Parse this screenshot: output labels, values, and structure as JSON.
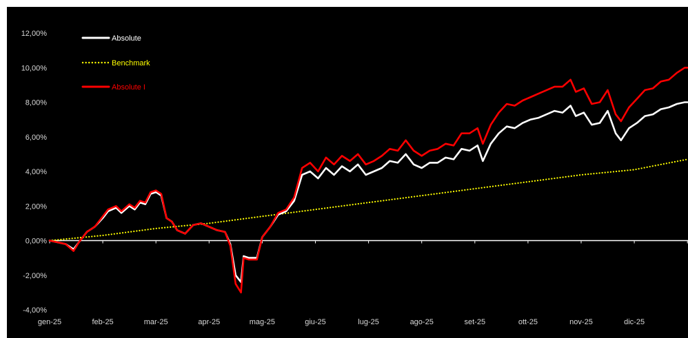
{
  "chart_data": {
    "type": "line",
    "y_ticks": [
      "12,00%",
      "10,00%",
      "8,00%",
      "6,00%",
      "4,00%",
      "2,00%",
      "0,00%",
      "-2,00%",
      "-4,00%"
    ],
    "x_ticks": [
      "gen-25",
      "feb-25",
      "mar-25",
      "apr-25",
      "mag-25",
      "giu-25",
      "lug-25",
      "ago-25",
      "set-25",
      "ott-25",
      "nov-25",
      "dic-25"
    ],
    "ylim": [
      -4,
      12
    ],
    "x_range_months": [
      0,
      12
    ],
    "grid": false,
    "legend_position": "top-left",
    "series": [
      {
        "name": "Absolute",
        "color": "#ffffff",
        "style": "solid",
        "points": [
          [
            0,
            0
          ],
          [
            0.15,
            -0.1
          ],
          [
            0.3,
            -0.2
          ],
          [
            0.45,
            -0.5
          ],
          [
            0.55,
            -0.1
          ],
          [
            0.7,
            0.5
          ],
          [
            0.85,
            0.8
          ],
          [
            1.0,
            1.3
          ],
          [
            1.1,
            1.7
          ],
          [
            1.25,
            1.9
          ],
          [
            1.35,
            1.6
          ],
          [
            1.5,
            2.0
          ],
          [
            1.6,
            1.8
          ],
          [
            1.7,
            2.2
          ],
          [
            1.8,
            2.1
          ],
          [
            1.9,
            2.7
          ],
          [
            2.0,
            2.8
          ],
          [
            2.1,
            2.6
          ],
          [
            2.2,
            1.3
          ],
          [
            2.3,
            1.1
          ],
          [
            2.4,
            0.6
          ],
          [
            2.55,
            0.4
          ],
          [
            2.7,
            0.9
          ],
          [
            2.85,
            1.0
          ],
          [
            3.0,
            0.8
          ],
          [
            3.15,
            0.6
          ],
          [
            3.3,
            0.5
          ],
          [
            3.4,
            -0.2
          ],
          [
            3.5,
            -2.0
          ],
          [
            3.6,
            -2.4
          ],
          [
            3.65,
            -0.9
          ],
          [
            3.75,
            -1.0
          ],
          [
            3.9,
            -1.0
          ],
          [
            4.0,
            0.2
          ],
          [
            4.15,
            0.8
          ],
          [
            4.3,
            1.5
          ],
          [
            4.45,
            1.7
          ],
          [
            4.6,
            2.3
          ],
          [
            4.75,
            3.8
          ],
          [
            4.9,
            4.0
          ],
          [
            5.05,
            3.6
          ],
          [
            5.2,
            4.2
          ],
          [
            5.35,
            3.8
          ],
          [
            5.5,
            4.3
          ],
          [
            5.65,
            4.0
          ],
          [
            5.8,
            4.4
          ],
          [
            5.95,
            3.8
          ],
          [
            6.1,
            4.0
          ],
          [
            6.25,
            4.2
          ],
          [
            6.4,
            4.6
          ],
          [
            6.55,
            4.5
          ],
          [
            6.7,
            5.0
          ],
          [
            6.85,
            4.4
          ],
          [
            7.0,
            4.2
          ],
          [
            7.15,
            4.5
          ],
          [
            7.3,
            4.5
          ],
          [
            7.45,
            4.8
          ],
          [
            7.6,
            4.7
          ],
          [
            7.75,
            5.3
          ],
          [
            7.9,
            5.2
          ],
          [
            8.05,
            5.5
          ],
          [
            8.15,
            4.6
          ],
          [
            8.3,
            5.6
          ],
          [
            8.45,
            6.2
          ],
          [
            8.6,
            6.6
          ],
          [
            8.75,
            6.5
          ],
          [
            8.9,
            6.8
          ],
          [
            9.05,
            7.0
          ],
          [
            9.2,
            7.1
          ],
          [
            9.35,
            7.3
          ],
          [
            9.5,
            7.5
          ],
          [
            9.65,
            7.4
          ],
          [
            9.8,
            7.8
          ],
          [
            9.9,
            7.2
          ],
          [
            10.05,
            7.4
          ],
          [
            10.2,
            6.7
          ],
          [
            10.35,
            6.8
          ],
          [
            10.5,
            7.5
          ],
          [
            10.65,
            6.2
          ],
          [
            10.75,
            5.8
          ],
          [
            10.9,
            6.5
          ],
          [
            11.05,
            6.8
          ],
          [
            11.2,
            7.2
          ],
          [
            11.35,
            7.3
          ],
          [
            11.5,
            7.6
          ],
          [
            11.65,
            7.7
          ],
          [
            11.8,
            7.9
          ],
          [
            11.95,
            8.0
          ],
          [
            12.0,
            8.0
          ]
        ]
      },
      {
        "name": "Benchmark",
        "color": "#ffff00",
        "style": "dotted",
        "points": [
          [
            0,
            0
          ],
          [
            1,
            0.3
          ],
          [
            2,
            0.7
          ],
          [
            3,
            1.0
          ],
          [
            4,
            1.4
          ],
          [
            5,
            1.8
          ],
          [
            6,
            2.2
          ],
          [
            7,
            2.6
          ],
          [
            8,
            3.0
          ],
          [
            9,
            3.4
          ],
          [
            10,
            3.8
          ],
          [
            11,
            4.1
          ],
          [
            12,
            4.7
          ]
        ]
      },
      {
        "name": "Absolute I",
        "color": "#ff0000",
        "style": "solid",
        "points": [
          [
            0,
            0
          ],
          [
            0.15,
            -0.1
          ],
          [
            0.3,
            -0.2
          ],
          [
            0.45,
            -0.6
          ],
          [
            0.55,
            -0.1
          ],
          [
            0.7,
            0.5
          ],
          [
            0.85,
            0.8
          ],
          [
            1.0,
            1.4
          ],
          [
            1.1,
            1.8
          ],
          [
            1.25,
            2.0
          ],
          [
            1.35,
            1.7
          ],
          [
            1.5,
            2.1
          ],
          [
            1.6,
            1.9
          ],
          [
            1.7,
            2.3
          ],
          [
            1.8,
            2.2
          ],
          [
            1.9,
            2.8
          ],
          [
            2.0,
            2.9
          ],
          [
            2.1,
            2.7
          ],
          [
            2.2,
            1.3
          ],
          [
            2.3,
            1.1
          ],
          [
            2.4,
            0.6
          ],
          [
            2.55,
            0.4
          ],
          [
            2.7,
            0.9
          ],
          [
            2.85,
            1.0
          ],
          [
            3.0,
            0.8
          ],
          [
            3.15,
            0.6
          ],
          [
            3.3,
            0.5
          ],
          [
            3.4,
            -0.3
          ],
          [
            3.5,
            -2.5
          ],
          [
            3.6,
            -3.0
          ],
          [
            3.65,
            -1.0
          ],
          [
            3.75,
            -1.1
          ],
          [
            3.9,
            -1.1
          ],
          [
            4.0,
            0.2
          ],
          [
            4.15,
            0.8
          ],
          [
            4.3,
            1.6
          ],
          [
            4.45,
            1.8
          ],
          [
            4.6,
            2.5
          ],
          [
            4.75,
            4.2
          ],
          [
            4.9,
            4.5
          ],
          [
            5.05,
            4.0
          ],
          [
            5.2,
            4.8
          ],
          [
            5.35,
            4.4
          ],
          [
            5.5,
            4.9
          ],
          [
            5.65,
            4.6
          ],
          [
            5.8,
            5.0
          ],
          [
            5.95,
            4.4
          ],
          [
            6.1,
            4.6
          ],
          [
            6.25,
            4.9
          ],
          [
            6.4,
            5.3
          ],
          [
            6.55,
            5.2
          ],
          [
            6.7,
            5.8
          ],
          [
            6.85,
            5.2
          ],
          [
            7.0,
            4.9
          ],
          [
            7.15,
            5.2
          ],
          [
            7.3,
            5.3
          ],
          [
            7.45,
            5.6
          ],
          [
            7.6,
            5.5
          ],
          [
            7.75,
            6.2
          ],
          [
            7.9,
            6.2
          ],
          [
            8.05,
            6.5
          ],
          [
            8.15,
            5.6
          ],
          [
            8.3,
            6.7
          ],
          [
            8.45,
            7.4
          ],
          [
            8.6,
            7.9
          ],
          [
            8.75,
            7.8
          ],
          [
            8.9,
            8.1
          ],
          [
            9.05,
            8.3
          ],
          [
            9.2,
            8.5
          ],
          [
            9.35,
            8.7
          ],
          [
            9.5,
            8.9
          ],
          [
            9.65,
            8.9
          ],
          [
            9.8,
            9.3
          ],
          [
            9.9,
            8.6
          ],
          [
            10.05,
            8.8
          ],
          [
            10.2,
            7.9
          ],
          [
            10.35,
            8.0
          ],
          [
            10.5,
            8.7
          ],
          [
            10.65,
            7.3
          ],
          [
            10.75,
            6.9
          ],
          [
            10.9,
            7.7
          ],
          [
            11.05,
            8.2
          ],
          [
            11.2,
            8.7
          ],
          [
            11.35,
            8.8
          ],
          [
            11.5,
            9.2
          ],
          [
            11.65,
            9.3
          ],
          [
            11.8,
            9.7
          ],
          [
            11.95,
            10.0
          ],
          [
            12.0,
            10.0
          ]
        ]
      }
    ]
  }
}
